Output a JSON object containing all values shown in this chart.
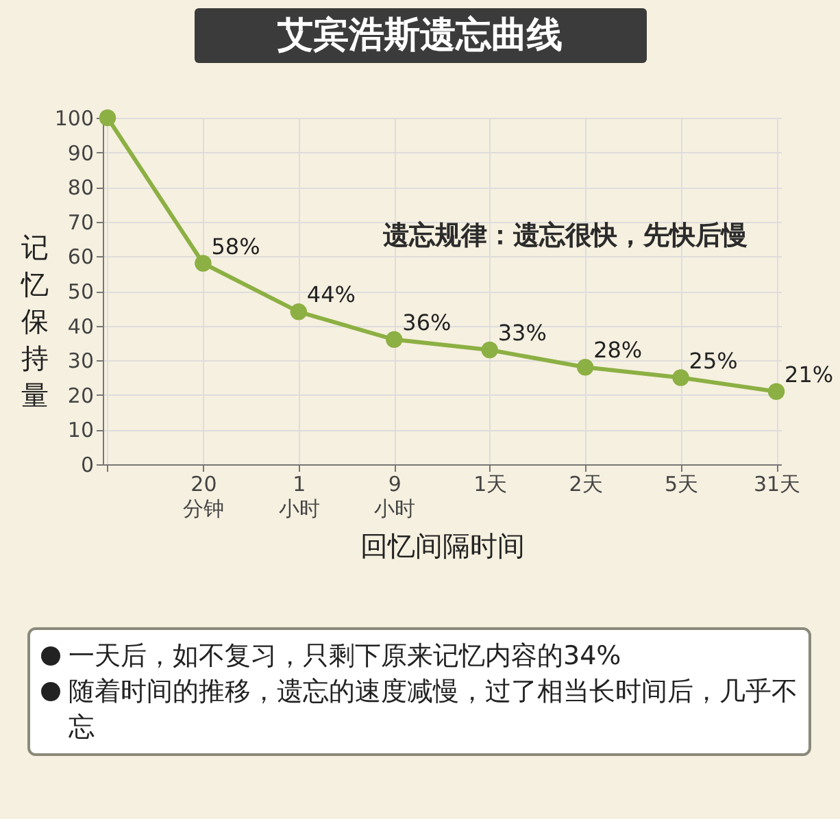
{
  "chart_data": {
    "type": "line",
    "title": "艾宾浩斯遗忘曲线",
    "ylabel": "记忆保持量",
    "xlabel": "回忆间隔时间",
    "categories": [
      null,
      "20\n分钟",
      "1\n小时",
      "9\n小时",
      "1天",
      "2天",
      "5天",
      "31天"
    ],
    "series": [
      {
        "color": "#8cb043",
        "values": [
          100,
          58,
          44,
          36,
          33,
          28,
          25,
          21
        ],
        "value_labels": [
          null,
          "58%",
          "44%",
          "36%",
          "33%",
          "28%",
          "25%",
          "21%"
        ]
      }
    ],
    "ylim": [
      0,
      100
    ],
    "yticks": [
      0,
      10,
      20,
      30,
      40,
      50,
      60,
      70,
      80,
      90,
      100
    ],
    "grid": true,
    "marker": "circle",
    "line_style": "solid",
    "annotations": [
      "遗忘规律：遗忘很快，先快后慢",
      "一天后，如不复习，只剩下原来记忆内容的34%",
      "随着时间的推移，遗忘的速度减慢，过了相当长时间后，几乎不忘"
    ]
  }
}
